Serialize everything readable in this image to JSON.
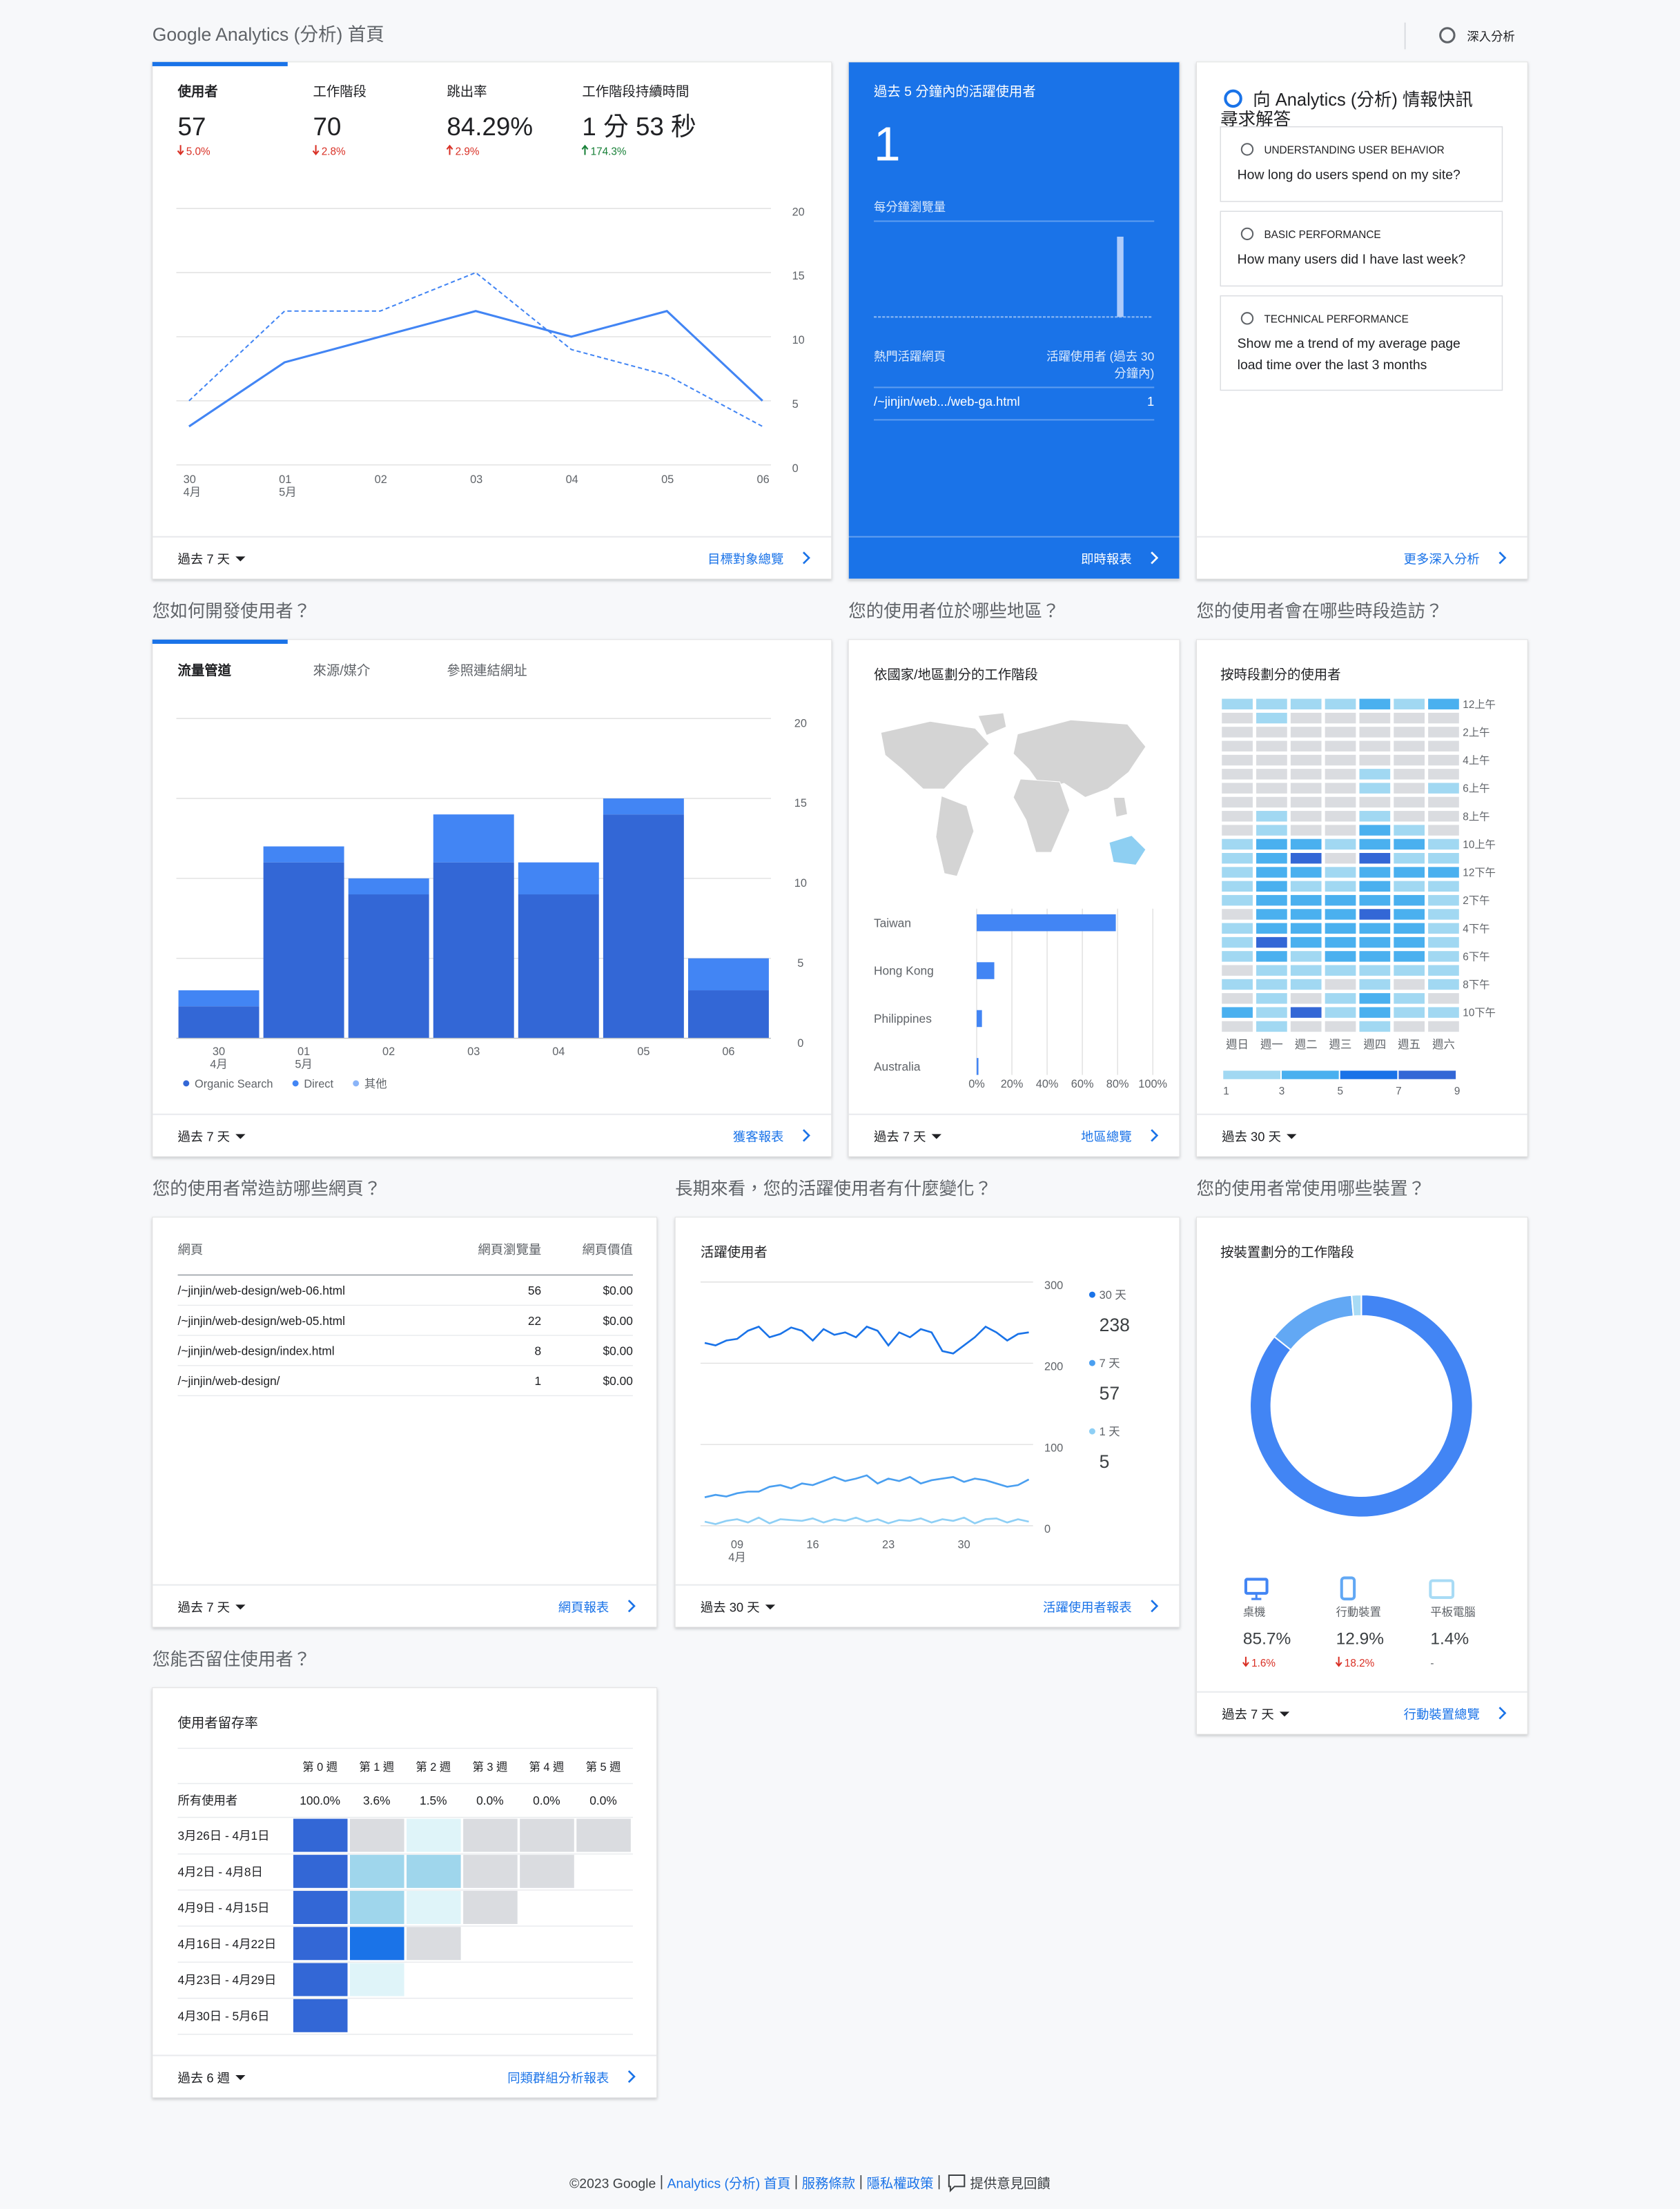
{
  "header": {
    "title": "Google Analytics (分析) 首頁",
    "insights_button": "深入分析"
  },
  "overview": {
    "tabs": [
      {
        "label": "使用者",
        "value": 57,
        "change": "5.0%",
        "direction": "down",
        "change_color": "#d93025"
      },
      {
        "label": "工作階段",
        "value": 70,
        "change": "2.8%",
        "direction": "down",
        "change_color": "#d93025"
      },
      {
        "label": "跳出率",
        "value": "84.29%",
        "change": "2.9%",
        "direction": "up",
        "change_color": "#d93025"
      },
      {
        "label": "工作階段持續時間",
        "value": "1 分 53 秒",
        "change": "174.3%",
        "direction": "up",
        "change_color": "#188038"
      }
    ],
    "chart": {
      "type": "line",
      "categories": [
        "30",
        "01",
        "02",
        "03",
        "04",
        "05",
        "06"
      ],
      "category_sublabels": [
        "4月",
        "5月",
        null,
        null,
        null,
        null,
        null
      ],
      "series": [
        {
          "color": "#4285f4",
          "dashed": false,
          "values": [
            3,
            8,
            10,
            12,
            10,
            12,
            5
          ]
        },
        {
          "color": "#4285f4",
          "dashed": true,
          "values": [
            5,
            12,
            12,
            15,
            9,
            7,
            3
          ]
        }
      ],
      "ylim": [
        0,
        20
      ],
      "yticks": [
        0,
        5,
        10,
        15,
        20
      ],
      "grid": true
    },
    "period": "過去 7 天",
    "link": "目標對象總覽"
  },
  "realtime": {
    "title": "過去 5 分鐘內的活躍使用者",
    "active_users": 1,
    "chart_title": "每分鐘瀏覽量",
    "chart": {
      "type": "bar",
      "color": "#aecbfa",
      "values": [
        0,
        0,
        0,
        0,
        0,
        0,
        0,
        0,
        0,
        0,
        0,
        0,
        0,
        0,
        0,
        0,
        0,
        0,
        0,
        0,
        0,
        0,
        0,
        0,
        0,
        0,
        1,
        0,
        0,
        0
      ]
    },
    "table": {
      "header": [
        "熱門活躍網頁",
        [
          "活躍使用者 (過去 30",
          "分鐘內)"
        ]
      ],
      "rows": [
        [
          "/~jinjin/web.../web-ga.html",
          1
        ]
      ]
    },
    "link": "即時報表"
  },
  "insights": {
    "title_lines": [
      "向 Analytics (分析) 情報快訊",
      "尋求解答"
    ],
    "items": [
      {
        "category": "UNDERSTANDING USER BEHAVIOR",
        "question_lines": [
          "How long do users spend on my site?"
        ]
      },
      {
        "category": "BASIC PERFORMANCE",
        "question_lines": [
          "How many users did I have last week?"
        ]
      },
      {
        "category": "TECHNICAL PERFORMANCE",
        "question_lines": [
          "Show me a trend of my average page",
          "load time over the last 3 months"
        ]
      }
    ],
    "link": "更多深入分析"
  },
  "acquisition": {
    "heading": "您如何開發使用者？",
    "tabs": [
      "流量管道",
      "來源/媒介",
      "參照連結網址"
    ],
    "chart": {
      "type": "bar",
      "stacked": true,
      "categories": [
        "30",
        "01",
        "02",
        "03",
        "04",
        "05",
        "06"
      ],
      "category_sublabels": [
        "4月",
        "5月",
        null,
        null,
        null,
        null,
        null
      ],
      "series": [
        {
          "name": "Organic Search",
          "color": "#3367d6",
          "values": [
            2,
            11,
            9,
            11,
            9,
            14,
            3
          ]
        },
        {
          "name": "Direct",
          "color": "#4285f4",
          "values": [
            1,
            1,
            1,
            3,
            2,
            1,
            2
          ]
        },
        {
          "name": "其他",
          "color": "#8ab4f8",
          "values": [
            0,
            0,
            0,
            0,
            0,
            0,
            0
          ]
        }
      ],
      "ylim": [
        0,
        20
      ],
      "yticks": [
        0,
        5,
        10,
        15,
        20
      ],
      "grid": true
    },
    "period": "過去 7 天",
    "link": "獲客報表"
  },
  "geo": {
    "heading": "您的使用者位於哪些地區？",
    "title": "依國家/地區劃分的工作階段",
    "chart": {
      "type": "bar",
      "orientation": "horizontal",
      "categories": [
        "Taiwan",
        "Hong Kong",
        "Philippines",
        "Australia"
      ],
      "values": [
        79,
        10,
        3,
        1
      ],
      "color": "#4285f4",
      "xlim": [
        0,
        100
      ],
      "xticks": [
        {
          "value": 0,
          "label": "0%"
        },
        {
          "value": 20,
          "label": "20%"
        },
        {
          "value": 40,
          "label": "40%"
        },
        {
          "value": 60,
          "label": "60%"
        },
        {
          "value": 80,
          "label": "80%"
        },
        {
          "value": 100,
          "label": "100%"
        }
      ],
      "grid": true
    },
    "period": "過去 7 天",
    "link": "地區總覽"
  },
  "hourly": {
    "heading": "您的使用者會在哪些時段造訪？",
    "title": "按時段劃分的使用者",
    "chart": {
      "type": "heatmap",
      "columns": [
        "週日",
        "週一",
        "週二",
        "週三",
        "週四",
        "週五",
        "週六"
      ],
      "rows": [
        "12上午",
        null,
        "2上午",
        null,
        "4上午",
        null,
        "6上午",
        null,
        "8上午",
        null,
        "10上午",
        null,
        "12下午",
        null,
        "2下午",
        null,
        "4下午",
        null,
        "6下午",
        null,
        "8下午",
        null,
        "10下午",
        null
      ],
      "values": [
        [
          2,
          1,
          2,
          2,
          3,
          1,
          3
        ],
        [
          0,
          2,
          0,
          0,
          0,
          0,
          0
        ],
        [
          0,
          0,
          0,
          0,
          0,
          0,
          0
        ],
        [
          0,
          0,
          0,
          0,
          0,
          0,
          0
        ],
        [
          0,
          0,
          0,
          0,
          0,
          0,
          0
        ],
        [
          0,
          0,
          0,
          0,
          2,
          0,
          0
        ],
        [
          0,
          0,
          0,
          0,
          2,
          0,
          1
        ],
        [
          0,
          0,
          0,
          0,
          0,
          0,
          0
        ],
        [
          0,
          1,
          0,
          0,
          1,
          0,
          0
        ],
        [
          0,
          2,
          0,
          0,
          3,
          2,
          0
        ],
        [
          1,
          4,
          3,
          1,
          4,
          3,
          2
        ],
        [
          2,
          3,
          7,
          0,
          7,
          2,
          1
        ],
        [
          2,
          4,
          3,
          2,
          3,
          3,
          3
        ],
        [
          1,
          3,
          1,
          2,
          4,
          2,
          1
        ],
        [
          2,
          4,
          3,
          3,
          4,
          3,
          2
        ],
        [
          0,
          4,
          4,
          4,
          7,
          4,
          2
        ],
        [
          1,
          4,
          4,
          3,
          4,
          3,
          2
        ],
        [
          2,
          7,
          4,
          4,
          3,
          4,
          1
        ],
        [
          1,
          3,
          2,
          3,
          3,
          3,
          2
        ],
        [
          0,
          2,
          2,
          1,
          2,
          1,
          2
        ],
        [
          1,
          2,
          2,
          0,
          2,
          0,
          2
        ],
        [
          0,
          2,
          0,
          1,
          3,
          2,
          0
        ],
        [
          3,
          1,
          7,
          2,
          3,
          2,
          1
        ],
        [
          0,
          1,
          0,
          0,
          1,
          0,
          0
        ]
      ],
      "colors": [
        "#dadce0",
        "#a1d8f2",
        "#4ab0ef",
        "#1a73e8",
        "#3367d6"
      ],
      "legend_ticks": [
        1,
        3,
        5,
        7,
        9
      ]
    },
    "period": "過去 30 天"
  },
  "pages": {
    "heading": "您的使用者常造訪哪些網頁？",
    "table": {
      "header": [
        "網頁",
        "網頁瀏覽量",
        "網頁價值"
      ],
      "rows": [
        [
          "/~jinjin/web-design/web-06.html",
          56,
          "$0.00"
        ],
        [
          "/~jinjin/web-design/web-05.html",
          22,
          "$0.00"
        ],
        [
          "/~jinjin/web-design/index.html",
          8,
          "$0.00"
        ],
        [
          "/~jinjin/web-design/",
          1,
          "$0.00"
        ]
      ]
    },
    "period": "過去 7 天",
    "link": "網頁報表"
  },
  "active_users": {
    "heading": "長期來看，您的活躍使用者有什麼變化？",
    "title": "活躍使用者",
    "chart": {
      "type": "line",
      "categories": [
        null,
        null,
        null,
        "09",
        null,
        null,
        null,
        null,
        null,
        null,
        "16",
        null,
        null,
        null,
        null,
        null,
        null,
        "23",
        null,
        null,
        null,
        null,
        null,
        null,
        "30",
        null,
        null,
        null,
        null,
        null,
        null
      ],
      "category_sublabels": [
        null,
        null,
        null,
        "4月",
        null,
        null,
        null,
        null,
        null,
        null,
        null,
        null,
        null,
        null,
        null,
        null,
        null,
        null,
        null,
        null,
        null,
        null,
        null,
        null,
        null,
        null,
        null,
        null,
        null,
        null,
        null
      ],
      "series": [
        {
          "name": "30 天",
          "color": "#1a73e8",
          "current": 238,
          "values": [
            225,
            222,
            228,
            230,
            240,
            245,
            232,
            236,
            244,
            240,
            228,
            242,
            235,
            238,
            232,
            245,
            240,
            222,
            238,
            232,
            242,
            238,
            215,
            212,
            222,
            232,
            245,
            238,
            228,
            236,
            238
          ]
        },
        {
          "name": "7 天",
          "color": "#4a9ff0",
          "current": 57,
          "values": [
            35,
            38,
            36,
            40,
            42,
            42,
            48,
            50,
            46,
            52,
            50,
            55,
            60,
            55,
            58,
            62,
            52,
            58,
            55,
            60,
            52,
            56,
            58,
            60,
            54,
            58,
            56,
            52,
            48,
            50,
            57
          ]
        },
        {
          "name": "1 天",
          "color": "#8ecff5",
          "current": 5,
          "values": [
            5,
            2,
            6,
            8,
            4,
            10,
            3,
            8,
            7,
            6,
            9,
            4,
            8,
            6,
            10,
            5,
            8,
            3,
            7,
            6,
            9,
            4,
            8,
            6,
            10,
            3,
            8,
            9,
            4,
            8,
            5
          ]
        }
      ],
      "ylim": [
        0,
        300
      ],
      "yticks": [
        0,
        100,
        200,
        300
      ],
      "grid": true
    },
    "period": "過去 30 天",
    "link": "活躍使用者報表"
  },
  "devices": {
    "heading": "您的使用者常使用哪些裝置？",
    "title": "按裝置劃分的工作階段",
    "chart": {
      "type": "pie",
      "donut": true,
      "categories": [
        "桌機",
        "行動裝置",
        "平板電腦"
      ],
      "values": [
        85.7,
        12.9,
        1.4
      ],
      "value_labels": [
        "85.7%",
        "12.9%",
        "1.4%"
      ],
      "colors": [
        "#4285f4",
        "#62a8f4",
        "#a8dbf5"
      ],
      "changes": [
        "1.6%",
        "18.2%",
        "-"
      ],
      "change_directions": [
        "down",
        "down",
        null
      ],
      "change_color": "#d93025"
    },
    "period": "過去 7 天",
    "link": "行動裝置總覽"
  },
  "retention": {
    "heading": "您能否留住使用者？",
    "title": "使用者留存率",
    "columns": [
      "第 0 週",
      "第 1 週",
      "第 2 週",
      "第 3 週",
      "第 4 週",
      "第 5 週"
    ],
    "summary": {
      "label": "所有使用者",
      "values": [
        "100.0%",
        "3.6%",
        "1.5%",
        "0.0%",
        "0.0%",
        "0.0%"
      ]
    },
    "cohorts": [
      {
        "label": "3月26日 - 4月1日",
        "values": [
          100,
          0,
          1,
          0,
          0,
          0
        ]
      },
      {
        "label": "4月2日 - 4月8日",
        "values": [
          100,
          5,
          5,
          0,
          0
        ]
      },
      {
        "label": "4月9日 - 4月15日",
        "values": [
          100,
          5,
          1,
          0
        ]
      },
      {
        "label": "4月16日 - 4月22日",
        "values": [
          100,
          12,
          0
        ]
      },
      {
        "label": "4月23日 - 4月29日",
        "values": [
          100,
          1
        ]
      },
      {
        "label": "4月30日 - 5月6日",
        "values": [
          100
        ]
      }
    ],
    "colors": [
      "#dadce0",
      "#dff4f9",
      "#9fd6ec",
      "#1a73e8",
      "#3367d6"
    ],
    "period": "過去 6 週",
    "link": "同類群組分析報表"
  },
  "footer": {
    "copyright": "©2023 Google",
    "links": [
      "Analytics (分析) 首頁",
      "服務條款",
      "隱私權政策"
    ],
    "feedback": "提供意見回饋"
  }
}
